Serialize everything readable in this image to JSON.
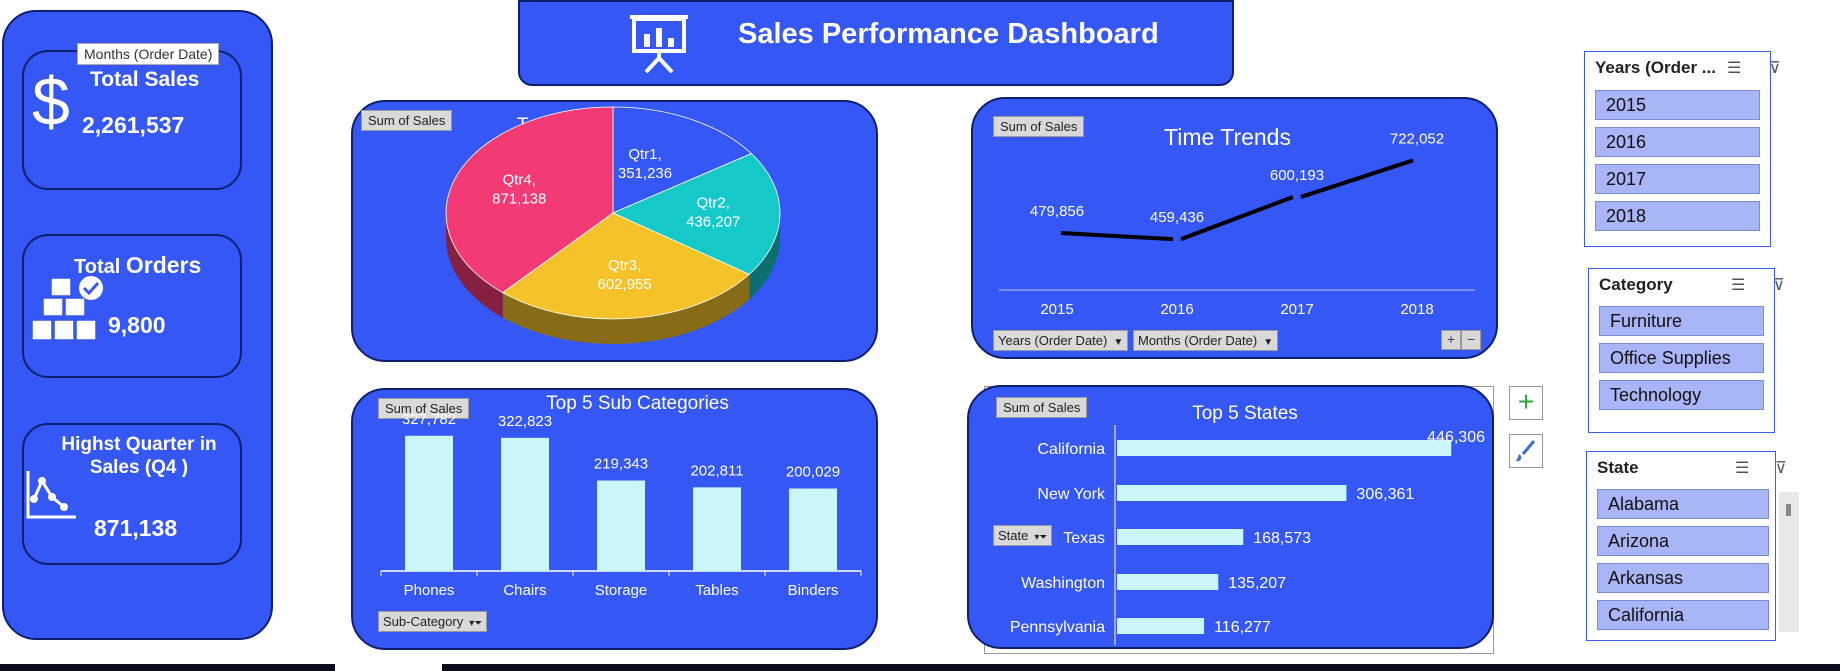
{
  "colors": {
    "panel": "#3557f5",
    "border": "#0d1f6e",
    "bar": "#c9f6f6",
    "qtr1": "#3557f5",
    "qtr2": "#16c9c9",
    "qtr3": "#f5c22a",
    "qtr4": "#f23b74",
    "slicer_item": "#a8b5f7"
  },
  "header": {
    "title": "Sales Performance Dashboard",
    "icon": "presentation-board-icon"
  },
  "tooltip": {
    "text": "Months (Order Date)"
  },
  "kpis": {
    "total_sales": {
      "label": "Total Sales",
      "value": "2,261,537",
      "icon": "dollar-icon"
    },
    "total_orders": {
      "label_part1": "Total ",
      "label_part2": "Orders",
      "value": "9,800",
      "icon": "boxes-check-icon"
    },
    "highest_quarter": {
      "label": "Highst Quarter in Sales (Q4 )",
      "value": "871,138",
      "icon": "line-chart-icon"
    }
  },
  "field_tags": {
    "pie": "Sum of Sales",
    "line": "Sum of Sales",
    "bar": "Sum of Sales",
    "states": "Sum of Sales"
  },
  "filters": {
    "years": "Years (Order Date)",
    "months": "Months (Order Date)",
    "sub_category": "Sub-Category",
    "state": "State"
  },
  "chart_data": [
    {
      "type": "pie",
      "title": "Total Sales / Quarter",
      "categories": [
        "Qtr1",
        "Qtr2",
        "Qtr3",
        "Qtr4"
      ],
      "values": [
        351236,
        436207,
        602955,
        871138
      ],
      "value_labels": [
        "351,236",
        "436,207",
        "602,955",
        "871,138"
      ]
    },
    {
      "type": "line",
      "title": "Time Trends",
      "categories": [
        "2015",
        "2016",
        "2017",
        "2018"
      ],
      "values": [
        479856,
        459436,
        600193,
        722052
      ],
      "value_labels": [
        "479,856",
        "459,436",
        "600,193",
        "722,052"
      ]
    },
    {
      "type": "bar",
      "title": "Top 5 Sub Categories",
      "categories": [
        "Phones",
        "Chairs",
        "Storage",
        "Tables",
        "Binders"
      ],
      "values": [
        327782,
        322823,
        219343,
        202811,
        200029
      ],
      "value_labels": [
        "327,782",
        "322,823",
        "219,343",
        "202,811",
        "200,029"
      ]
    },
    {
      "type": "bar",
      "orientation": "horizontal",
      "title": "Top 5 States",
      "categories": [
        "California",
        "New York",
        "Texas",
        "Washington",
        "Pennsylvania"
      ],
      "values": [
        446306,
        306361,
        168573,
        135207,
        116277
      ],
      "value_labels": [
        "446,306",
        "306,361",
        "168,573",
        "135,207",
        "116,277"
      ]
    }
  ],
  "slicers": {
    "years": {
      "title": "Years (Order ...",
      "items": [
        "2015",
        "2016",
        "2017",
        "2018"
      ]
    },
    "category": {
      "title": "Category",
      "items": [
        "Furniture",
        "Office Supplies",
        "Technology"
      ]
    },
    "state": {
      "title": "State",
      "items": [
        "Alabama",
        "Arizona",
        "Arkansas",
        "California"
      ]
    }
  }
}
